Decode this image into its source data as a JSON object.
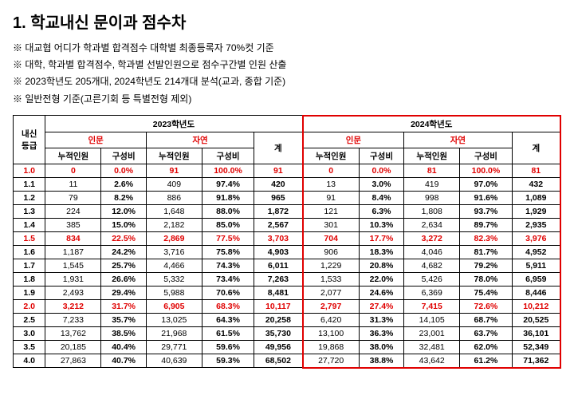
{
  "title": "1. 학교내신 문이과 점수차",
  "notes": [
    "※ 대교협 어디가 학과별 합격점수 대학별 최종등록자 70%컷 기준",
    "※ 대학, 학과별 합격점수, 학과별 선발인원으로 점수구간별 인원 산출",
    "※ 2023학년도 205개대, 2024학년도 214개대 분석(교과, 종합 기준)",
    "※ 일반전형 기준(고른기회 등 특별전형 제외)"
  ],
  "headers": {
    "grade": "내신\n등급",
    "year2023": "2023학년도",
    "year2024": "2024학년도",
    "humanities": "인문",
    "science": "자연",
    "total": "계",
    "cumulative": "누적인원",
    "ratio": "구성비"
  },
  "colors": {
    "red": "#e00000"
  },
  "highlight_grades": [
    "1.0",
    "1.5",
    "2.0"
  ],
  "rows": [
    {
      "grade": "1.0",
      "y23": {
        "h_cum": "0",
        "h_pct": "0.0%",
        "s_cum": "91",
        "s_pct": "100.0%",
        "tot": "91"
      },
      "y24": {
        "h_cum": "0",
        "h_pct": "0.0%",
        "s_cum": "81",
        "s_pct": "100.0%",
        "tot": "81"
      }
    },
    {
      "grade": "1.1",
      "y23": {
        "h_cum": "11",
        "h_pct": "2.6%",
        "s_cum": "409",
        "s_pct": "97.4%",
        "tot": "420"
      },
      "y24": {
        "h_cum": "13",
        "h_pct": "3.0%",
        "s_cum": "419",
        "s_pct": "97.0%",
        "tot": "432"
      }
    },
    {
      "grade": "1.2",
      "y23": {
        "h_cum": "79",
        "h_pct": "8.2%",
        "s_cum": "886",
        "s_pct": "91.8%",
        "tot": "965"
      },
      "y24": {
        "h_cum": "91",
        "h_pct": "8.4%",
        "s_cum": "998",
        "s_pct": "91.6%",
        "tot": "1,089"
      }
    },
    {
      "grade": "1.3",
      "y23": {
        "h_cum": "224",
        "h_pct": "12.0%",
        "s_cum": "1,648",
        "s_pct": "88.0%",
        "tot": "1,872"
      },
      "y24": {
        "h_cum": "121",
        "h_pct": "6.3%",
        "s_cum": "1,808",
        "s_pct": "93.7%",
        "tot": "1,929"
      }
    },
    {
      "grade": "1.4",
      "y23": {
        "h_cum": "385",
        "h_pct": "15.0%",
        "s_cum": "2,182",
        "s_pct": "85.0%",
        "tot": "2,567"
      },
      "y24": {
        "h_cum": "301",
        "h_pct": "10.3%",
        "s_cum": "2,634",
        "s_pct": "89.7%",
        "tot": "2,935"
      }
    },
    {
      "grade": "1.5",
      "y23": {
        "h_cum": "834",
        "h_pct": "22.5%",
        "s_cum": "2,869",
        "s_pct": "77.5%",
        "tot": "3,703"
      },
      "y24": {
        "h_cum": "704",
        "h_pct": "17.7%",
        "s_cum": "3,272",
        "s_pct": "82.3%",
        "tot": "3,976"
      }
    },
    {
      "grade": "1.6",
      "y23": {
        "h_cum": "1,187",
        "h_pct": "24.2%",
        "s_cum": "3,716",
        "s_pct": "75.8%",
        "tot": "4,903"
      },
      "y24": {
        "h_cum": "906",
        "h_pct": "18.3%",
        "s_cum": "4,046",
        "s_pct": "81.7%",
        "tot": "4,952"
      }
    },
    {
      "grade": "1.7",
      "y23": {
        "h_cum": "1,545",
        "h_pct": "25.7%",
        "s_cum": "4,466",
        "s_pct": "74.3%",
        "tot": "6,011"
      },
      "y24": {
        "h_cum": "1,229",
        "h_pct": "20.8%",
        "s_cum": "4,682",
        "s_pct": "79.2%",
        "tot": "5,911"
      }
    },
    {
      "grade": "1.8",
      "y23": {
        "h_cum": "1,931",
        "h_pct": "26.6%",
        "s_cum": "5,332",
        "s_pct": "73.4%",
        "tot": "7,263"
      },
      "y24": {
        "h_cum": "1,533",
        "h_pct": "22.0%",
        "s_cum": "5,426",
        "s_pct": "78.0%",
        "tot": "6,959"
      }
    },
    {
      "grade": "1.9",
      "y23": {
        "h_cum": "2,493",
        "h_pct": "29.4%",
        "s_cum": "5,988",
        "s_pct": "70.6%",
        "tot": "8,481"
      },
      "y24": {
        "h_cum": "2,077",
        "h_pct": "24.6%",
        "s_cum": "6,369",
        "s_pct": "75.4%",
        "tot": "8,446"
      }
    },
    {
      "grade": "2.0",
      "y23": {
        "h_cum": "3,212",
        "h_pct": "31.7%",
        "s_cum": "6,905",
        "s_pct": "68.3%",
        "tot": "10,117"
      },
      "y24": {
        "h_cum": "2,797",
        "h_pct": "27.4%",
        "s_cum": "7,415",
        "s_pct": "72.6%",
        "tot": "10,212"
      }
    },
    {
      "grade": "2.5",
      "y23": {
        "h_cum": "7,233",
        "h_pct": "35.7%",
        "s_cum": "13,025",
        "s_pct": "64.3%",
        "tot": "20,258"
      },
      "y24": {
        "h_cum": "6,420",
        "h_pct": "31.3%",
        "s_cum": "14,105",
        "s_pct": "68.7%",
        "tot": "20,525"
      }
    },
    {
      "grade": "3.0",
      "y23": {
        "h_cum": "13,762",
        "h_pct": "38.5%",
        "s_cum": "21,968",
        "s_pct": "61.5%",
        "tot": "35,730"
      },
      "y24": {
        "h_cum": "13,100",
        "h_pct": "36.3%",
        "s_cum": "23,001",
        "s_pct": "63.7%",
        "tot": "36,101"
      }
    },
    {
      "grade": "3.5",
      "y23": {
        "h_cum": "20,185",
        "h_pct": "40.4%",
        "s_cum": "29,771",
        "s_pct": "59.6%",
        "tot": "49,956"
      },
      "y24": {
        "h_cum": "19,868",
        "h_pct": "38.0%",
        "s_cum": "32,481",
        "s_pct": "62.0%",
        "tot": "52,349"
      }
    },
    {
      "grade": "4.0",
      "y23": {
        "h_cum": "27,863",
        "h_pct": "40.7%",
        "s_cum": "40,639",
        "s_pct": "59.3%",
        "tot": "68,502"
      },
      "y24": {
        "h_cum": "27,720",
        "h_pct": "38.8%",
        "s_cum": "43,642",
        "s_pct": "61.2%",
        "tot": "71,362"
      }
    }
  ]
}
